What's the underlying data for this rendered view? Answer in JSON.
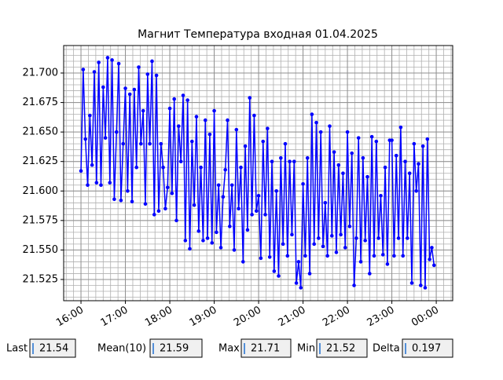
{
  "chart_data": {
    "type": "line",
    "title": "Магнит Температура входная 01.04.2025",
    "x": [
      16.0,
      16.05,
      16.1,
      16.15,
      16.2,
      16.25,
      16.3,
      16.35,
      16.4,
      16.45,
      16.5,
      16.55,
      16.6,
      16.65,
      16.7,
      16.75,
      16.8,
      16.85,
      16.9,
      16.95,
      17.0,
      17.05,
      17.1,
      17.15,
      17.2,
      17.25,
      17.3,
      17.35,
      17.4,
      17.45,
      17.5,
      17.55,
      17.6,
      17.65,
      17.7,
      17.75,
      17.8,
      17.85,
      17.9,
      17.95,
      18.0,
      18.05,
      18.1,
      18.15,
      18.2,
      18.25,
      18.3,
      18.35,
      18.4,
      18.45,
      18.5,
      18.55,
      18.6,
      18.65,
      18.7,
      18.75,
      18.8,
      18.85,
      18.9,
      18.95,
      19.0,
      19.05,
      19.1,
      19.15,
      19.2,
      19.25,
      19.3,
      19.35,
      19.4,
      19.45,
      19.5,
      19.55,
      19.6,
      19.65,
      19.7,
      19.75,
      19.8,
      19.85,
      19.9,
      19.95,
      20.0,
      20.05,
      20.1,
      20.15,
      20.2,
      20.25,
      20.3,
      20.35,
      20.4,
      20.45,
      20.5,
      20.55,
      20.6,
      20.65,
      20.7,
      20.75,
      20.8,
      20.85,
      20.9,
      20.95,
      21.0,
      21.05,
      21.1,
      21.15,
      21.2,
      21.25,
      21.3,
      21.35,
      21.4,
      21.45,
      21.5,
      21.55,
      21.6,
      21.65,
      21.7,
      21.75,
      21.8,
      21.85,
      21.9,
      21.95,
      22.0,
      22.05,
      22.1,
      22.15,
      22.2,
      22.25,
      22.3,
      22.35,
      22.4,
      22.45,
      22.5,
      22.55,
      22.6,
      22.65,
      22.7,
      22.75,
      22.8,
      22.85,
      22.9,
      22.95,
      23.0,
      23.05,
      23.1,
      23.15,
      23.2,
      23.25,
      23.3,
      23.35,
      23.4,
      23.45,
      23.5,
      23.55,
      23.6,
      23.65,
      23.7,
      23.75,
      23.8,
      23.85,
      23.9,
      23.95
    ],
    "series": [
      {
        "color": "#0000ff",
        "values": [
          21.617,
          21.703,
          21.644,
          21.605,
          21.664,
          21.622,
          21.701,
          21.607,
          21.709,
          21.605,
          21.688,
          21.645,
          21.713,
          21.607,
          21.711,
          21.593,
          21.65,
          21.708,
          21.592,
          21.64,
          21.687,
          21.6,
          21.682,
          21.591,
          21.686,
          21.62,
          21.705,
          21.64,
          21.668,
          21.589,
          21.699,
          21.64,
          21.71,
          21.58,
          21.698,
          21.583,
          21.64,
          21.62,
          21.585,
          21.603,
          21.67,
          21.598,
          21.678,
          21.575,
          21.655,
          21.625,
          21.681,
          21.558,
          21.677,
          21.551,
          21.642,
          21.588,
          21.663,
          21.566,
          21.62,
          21.558,
          21.66,
          21.56,
          21.648,
          21.556,
          21.668,
          21.565,
          21.605,
          21.552,
          21.595,
          21.618,
          21.66,
          21.57,
          21.605,
          21.55,
          21.652,
          21.585,
          21.62,
          21.54,
          21.638,
          21.567,
          21.679,
          21.58,
          21.664,
          21.583,
          21.596,
          21.543,
          21.642,
          21.58,
          21.653,
          21.544,
          21.625,
          21.532,
          21.6,
          21.528,
          21.628,
          21.555,
          21.64,
          21.545,
          21.625,
          21.563,
          21.625,
          21.522,
          21.54,
          21.518,
          21.606,
          21.545,
          21.628,
          21.53,
          21.665,
          21.555,
          21.658,
          21.56,
          21.65,
          21.553,
          21.59,
          21.545,
          21.655,
          21.562,
          21.633,
          21.548,
          21.622,
          21.563,
          21.615,
          21.552,
          21.65,
          21.57,
          21.632,
          21.52,
          21.56,
          21.645,
          21.54,
          21.628,
          21.558,
          21.612,
          21.53,
          21.646,
          21.545,
          21.642,
          21.56,
          21.596,
          21.546,
          21.62,
          21.538,
          21.643,
          21.643,
          21.545,
          21.63,
          21.56,
          21.654,
          21.545,
          21.625,
          21.56,
          21.615,
          21.522,
          21.64,
          21.6,
          21.623,
          21.52,
          21.638,
          21.518,
          21.644,
          21.542,
          21.552,
          21.537
        ]
      }
    ],
    "xlim": [
      15.61,
      24.37
    ],
    "xticks": [
      {
        "value": 16,
        "label": "16:00"
      },
      {
        "value": 17,
        "label": "17:00"
      },
      {
        "value": 18,
        "label": "18:00"
      },
      {
        "value": 19,
        "label": "19:00"
      },
      {
        "value": 20,
        "label": "20:00"
      },
      {
        "value": 21,
        "label": "21:00"
      },
      {
        "value": 22,
        "label": "22:00"
      },
      {
        "value": 23,
        "label": "23:00"
      },
      {
        "value": 24,
        "label": "00:00"
      }
    ],
    "ylim": [
      21.507,
      21.7233
    ],
    "yticks": [
      {
        "value": 21.525,
        "label": "21.525"
      },
      {
        "value": 21.55,
        "label": "21.550"
      },
      {
        "value": 21.575,
        "label": "21.575"
      },
      {
        "value": 21.6,
        "label": "21.600"
      },
      {
        "value": 21.625,
        "label": "21.625"
      },
      {
        "value": 21.65,
        "label": "21.650"
      },
      {
        "value": 21.675,
        "label": "21.675"
      },
      {
        "value": 21.7,
        "label": "21.700"
      }
    ],
    "grid": true
  },
  "fields": [
    {
      "label": "Last",
      "value": "21.54"
    },
    {
      "label": "Mean(10)",
      "value": "21.59"
    },
    {
      "label": "Max",
      "value": "21.71"
    },
    {
      "label": "Min",
      "value": "21.52"
    },
    {
      "label": "Delta",
      "value": "0.197"
    }
  ]
}
